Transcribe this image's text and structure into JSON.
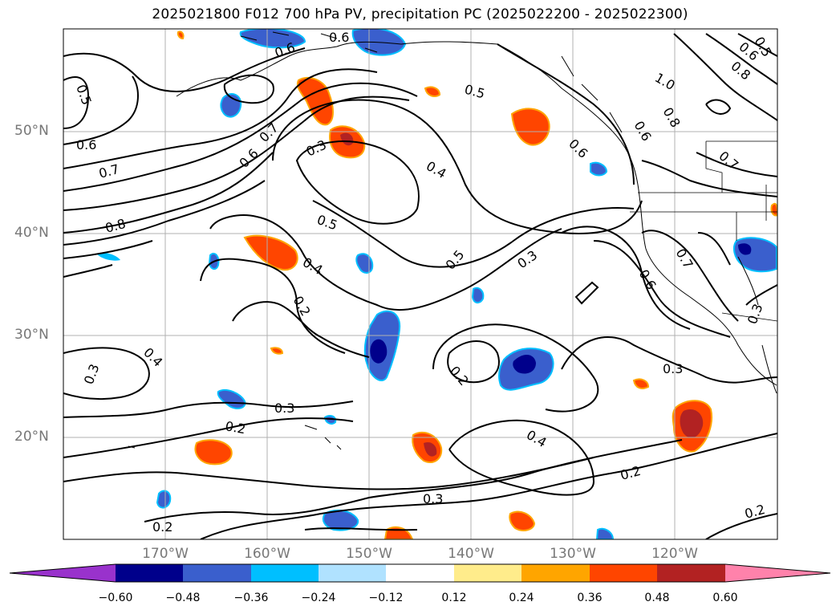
{
  "title": "2025021800 F012 700 hPa PV, precipitation PC (2025022200 - 2025022300)",
  "lat_labels": [
    "50°N",
    "40°N",
    "30°N",
    "20°N"
  ],
  "lon_labels": [
    "170°W",
    "160°W",
    "150°W",
    "140°W",
    "130°W",
    "120°W"
  ],
  "colorbar": {
    "ticks": [
      "−0.60",
      "−0.48",
      "−0.36",
      "−0.24",
      "−0.12",
      "0.12",
      "0.24",
      "0.36",
      "0.48",
      "0.60"
    ],
    "colors": [
      "#9932cc",
      "#00008b",
      "#3a5fcd",
      "#00bfff",
      "#b0e2ff",
      "#ffffff",
      "#ffec8b",
      "#ffa500",
      "#ff4500",
      "#b22222",
      "#ff82ab"
    ]
  },
  "contour_labels": [
    "0.5",
    "0.6",
    "0.7",
    "0.8",
    "0.6",
    "0.7",
    "0.6",
    "0.3",
    "0.5",
    "0.4",
    "0.5",
    "0.4",
    "0.2",
    "0.5",
    "0.3",
    "0.6",
    "1.0",
    "0.8",
    "0.6",
    "0.5",
    "0.6",
    "0.8",
    "0.7",
    "0.6",
    "0.7",
    "0.3",
    "0.4",
    "0.3",
    "0.3",
    "0.2",
    "0.2",
    "0.2",
    "0.3",
    "0.4",
    "0.3",
    "0.2",
    "0.2",
    "0.6"
  ]
}
